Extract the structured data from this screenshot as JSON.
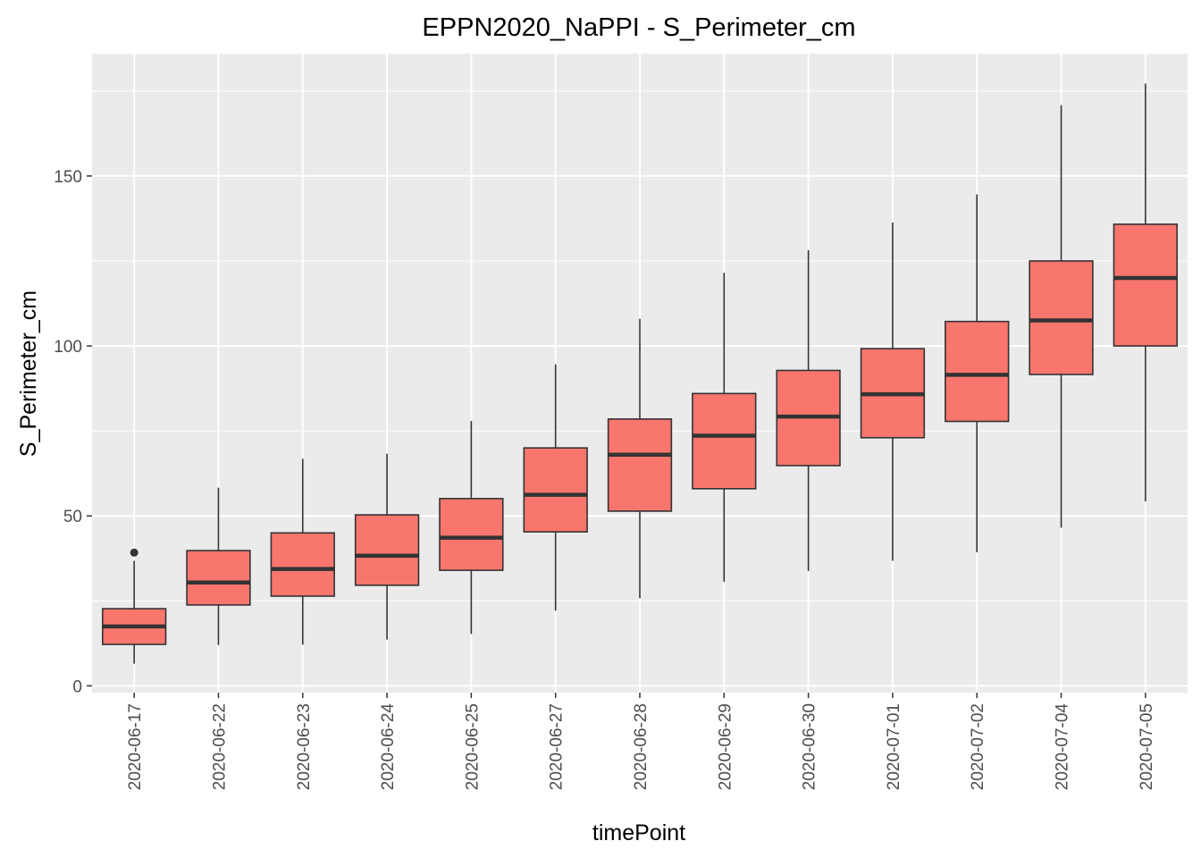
{
  "chart_data": {
    "type": "boxplot",
    "title": "EPPN2020_NaPPI - S_Perimeter_cm",
    "xlabel": "timePoint",
    "ylabel": "S_Perimeter_cm",
    "ylim": [
      -2,
      186
    ],
    "yticks": [
      0,
      50,
      100,
      150
    ],
    "grid": true,
    "legend": "none",
    "box_fill": "#F8766D",
    "box_stroke": "#333333",
    "panel_background": "#EBEBEB",
    "categories": [
      "2020-06-17",
      "2020-06-22",
      "2020-06-23",
      "2020-06-24",
      "2020-06-25",
      "2020-06-27",
      "2020-06-28",
      "2020-06-29",
      "2020-06-30",
      "2020-07-01",
      "2020-07-02",
      "2020-07-04",
      "2020-07-05"
    ],
    "boxes": [
      {
        "min": 6.5,
        "q1": 12.2,
        "median": 17.5,
        "q3": 22.7,
        "max": 36.8,
        "outliers": [
          39.2
        ]
      },
      {
        "min": 12.0,
        "q1": 23.8,
        "median": 30.4,
        "q3": 39.8,
        "max": 58.3,
        "outliers": []
      },
      {
        "min": 12.1,
        "q1": 26.4,
        "median": 34.4,
        "q3": 45.0,
        "max": 66.8,
        "outliers": []
      },
      {
        "min": 13.6,
        "q1": 29.6,
        "median": 38.3,
        "q3": 50.3,
        "max": 68.3,
        "outliers": []
      },
      {
        "min": 15.3,
        "q1": 34.0,
        "median": 43.6,
        "q3": 55.1,
        "max": 77.9,
        "outliers": []
      },
      {
        "min": 22.1,
        "q1": 45.3,
        "median": 56.2,
        "q3": 70.0,
        "max": 94.6,
        "outliers": []
      },
      {
        "min": 25.8,
        "q1": 51.4,
        "median": 68.0,
        "q3": 78.5,
        "max": 108.0,
        "outliers": []
      },
      {
        "min": 30.6,
        "q1": 58.0,
        "median": 73.6,
        "q3": 86.0,
        "max": 121.5,
        "outliers": []
      },
      {
        "min": 33.8,
        "q1": 64.8,
        "median": 79.2,
        "q3": 92.8,
        "max": 128.2,
        "outliers": []
      },
      {
        "min": 36.8,
        "q1": 73.0,
        "median": 85.8,
        "q3": 99.2,
        "max": 136.3,
        "outliers": []
      },
      {
        "min": 39.3,
        "q1": 77.8,
        "median": 91.5,
        "q3": 107.2,
        "max": 144.6,
        "outliers": []
      },
      {
        "min": 46.5,
        "q1": 91.6,
        "median": 107.5,
        "q3": 125.0,
        "max": 170.8,
        "outliers": []
      },
      {
        "min": 54.3,
        "q1": 100.0,
        "median": 120.0,
        "q3": 135.8,
        "max": 177.2,
        "outliers": []
      }
    ]
  }
}
